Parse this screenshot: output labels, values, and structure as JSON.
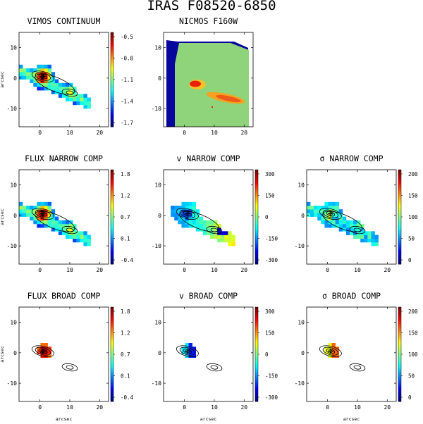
{
  "figure": {
    "title": "IRAS F08520-6850",
    "x_ticks": [
      "0",
      "10",
      "20"
    ],
    "y_ticks": [
      "10",
      "0",
      "-10"
    ],
    "ylabel": "arcsec",
    "xlabel": "arcsec"
  },
  "panels": [
    {
      "id": "vimos-continuum",
      "title": "VIMOS CONTINUUM",
      "colorbar": "jet",
      "cbar_ticks": [
        "-0.5",
        "-0.8",
        "-1.1",
        "-1.4",
        "-1.7"
      ],
      "map": "extended",
      "contours": true,
      "show_ylabel": true,
      "show_xlabel": false
    },
    {
      "id": "nicmos-f160w",
      "title": "NICMOS F160W",
      "colorbar": null,
      "cbar_ticks": [],
      "map": "nicmos",
      "contours": false,
      "show_ylabel": false,
      "show_xlabel": false
    },
    {
      "id": "flux-narrow",
      "title": "FLUX NARROW COMP",
      "colorbar": "jet",
      "cbar_ticks": [
        "1.8",
        "1.2",
        "0.7",
        "0.1",
        "-0.4"
      ],
      "map": "extended",
      "contours": true,
      "show_ylabel": true,
      "show_xlabel": false
    },
    {
      "id": "v-narrow",
      "title": "v NARROW COMP",
      "colorbar": "jet",
      "cbar_ticks": [
        "300",
        "150",
        "0",
        "-150",
        "-300"
      ],
      "map": "velocity",
      "contours": true,
      "show_ylabel": false,
      "show_xlabel": false
    },
    {
      "id": "sigma-narrow",
      "title": "σ NARROW COMP",
      "colorbar": "jet",
      "cbar_ticks": [
        "200",
        "150",
        "100",
        "50",
        "0"
      ],
      "map": "sigma",
      "contours": true,
      "show_ylabel": false,
      "show_xlabel": false
    },
    {
      "id": "flux-broad",
      "title": "FLUX BROAD COMP",
      "colorbar": "jet",
      "cbar_ticks": [
        "1.8",
        "1.2",
        "0.7",
        "0.1",
        "-0.4"
      ],
      "map": "compact-flux",
      "contours": true,
      "show_ylabel": true,
      "show_xlabel": true
    },
    {
      "id": "v-broad",
      "title": "v BROAD COMP",
      "colorbar": "jet",
      "cbar_ticks": [
        "300",
        "150",
        "0",
        "-150",
        "-300"
      ],
      "map": "compact-velocity",
      "contours": true,
      "show_ylabel": false,
      "show_xlabel": true
    },
    {
      "id": "sigma-broad",
      "title": "σ BROAD COMP",
      "colorbar": "jet",
      "cbar_ticks": [
        "200",
        "150",
        "100",
        "50",
        "0"
      ],
      "map": "compact-sigma",
      "contours": true,
      "show_ylabel": false,
      "show_xlabel": true
    }
  ],
  "colors": {
    "nicmos_background": "#06059c",
    "nicmos_field": "#8fd37a",
    "nicmos_peak": "#e8200c"
  }
}
